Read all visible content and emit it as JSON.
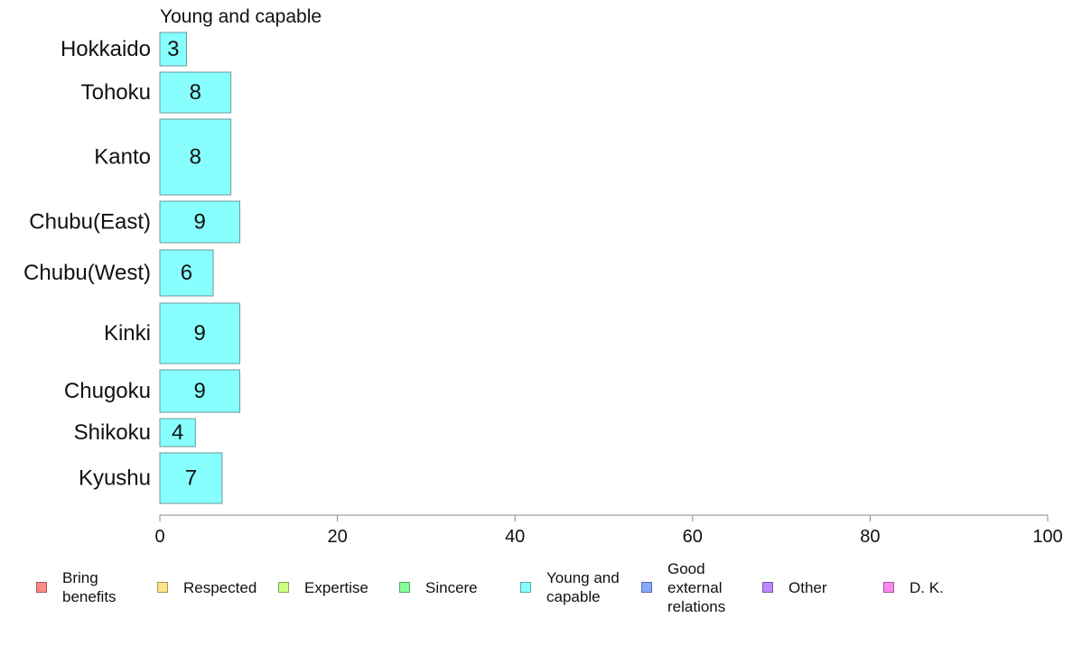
{
  "chart_data": {
    "type": "bar",
    "orientation": "horizontal",
    "stacked": true,
    "panel_title": "Young and capable",
    "categories": [
      "Hokkaido",
      "Tohoku",
      "Kanto",
      "Chubu(East)",
      "Chubu(West)",
      "Kinki",
      "Chugoku",
      "Shikoku",
      "Kyushu"
    ],
    "series": [
      {
        "name": "Young and capable",
        "color": "#88ffff",
        "values": [
          3,
          8,
          8,
          9,
          6,
          9,
          9,
          4,
          7
        ],
        "labels": [
          "3",
          "8",
          "8",
          "9",
          "6",
          "9",
          "9",
          "4",
          "7"
        ]
      }
    ],
    "xlim": [
      0,
      100
    ],
    "xticks": [
      "0",
      "20",
      "40",
      "60",
      "80",
      "100"
    ],
    "xtick_values": [
      0,
      20,
      40,
      60,
      80,
      100
    ],
    "grid": false,
    "legend_position": "bottom",
    "legend": [
      {
        "label": "Bring\nbenefits",
        "color": "#ff8888",
        "icon": "square-swatch"
      },
      {
        "label": "Respected",
        "color": "#ffe488",
        "icon": "square-swatch"
      },
      {
        "label": "Expertise",
        "color": "#ccff88",
        "icon": "square-swatch"
      },
      {
        "label": "Sincere",
        "color": "#88ff99",
        "icon": "square-swatch"
      },
      {
        "label": "Young and\ncapable",
        "color": "#88ffff",
        "icon": "square-swatch"
      },
      {
        "label": "Good\nexternal\nrelations",
        "color": "#88aaff",
        "icon": "square-swatch"
      },
      {
        "label": "Other",
        "color": "#bb88ff",
        "icon": "square-swatch"
      },
      {
        "label": "D. K.",
        "color": "#ff88ee",
        "icon": "square-swatch"
      }
    ]
  }
}
